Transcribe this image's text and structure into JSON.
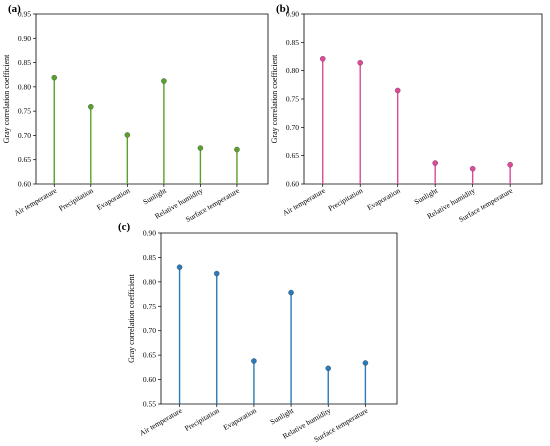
{
  "chart_data": [
    {
      "type": "lollipop",
      "panel_label": "(a)",
      "ylabel": "Gray correlation coefficient",
      "ylim": [
        0.6,
        0.95
      ],
      "yticks": [
        "0.60",
        "0.65",
        "0.70",
        "0.75",
        "0.80",
        "0.85",
        "0.90",
        "0.95"
      ],
      "categories": [
        "Air temperature",
        "Precipitation",
        "Evaporation",
        "Sunlight",
        "Relative humidity",
        "Surface temperature"
      ],
      "values": [
        0.819,
        0.759,
        0.701,
        0.812,
        0.674,
        0.671
      ],
      "color": "#5aa02c"
    },
    {
      "type": "lollipop",
      "panel_label": "(b)",
      "ylabel": "Gray correlation coefficient",
      "ylim": [
        0.6,
        0.9
      ],
      "yticks": [
        "0.60",
        "0.65",
        "0.70",
        "0.75",
        "0.80",
        "0.85",
        "0.90"
      ],
      "categories": [
        "Air temperature",
        "Precipitation",
        "Evaporation",
        "Sunlight",
        "Relative humidity",
        "Surface temperature"
      ],
      "values": [
        0.821,
        0.814,
        0.765,
        0.637,
        0.627,
        0.634
      ],
      "color": "#e0489a"
    },
    {
      "type": "lollipop",
      "panel_label": "(c)",
      "ylabel": "Gray correlation coefficient",
      "ylim": [
        0.55,
        0.9
      ],
      "yticks": [
        "0.55",
        "0.60",
        "0.65",
        "0.70",
        "0.75",
        "0.80",
        "0.85",
        "0.90"
      ],
      "categories": [
        "Air temperature",
        "Precipitation",
        "Evaporation",
        "Sunlight",
        "Relative humidity",
        "Surface temperature"
      ],
      "values": [
        0.83,
        0.817,
        0.638,
        0.778,
        0.623,
        0.634
      ],
      "color": "#2a7ab9"
    }
  ]
}
